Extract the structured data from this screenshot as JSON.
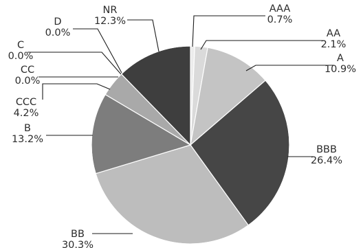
{
  "chart_data": {
    "type": "pie",
    "title": "",
    "start": "12 o'clock",
    "direction": "clockwise",
    "slices": [
      {
        "label": "AAA",
        "value_label": "0.7%",
        "value": 0.7,
        "color": "#ececec"
      },
      {
        "label": "AA",
        "value_label": "2.1%",
        "value": 2.1,
        "color": "#dadada"
      },
      {
        "label": "A",
        "value_label": "10.9%",
        "value": 10.9,
        "color": "#c4c4c4"
      },
      {
        "label": "BBB",
        "value_label": "26.4%",
        "value": 26.4,
        "color": "#464646"
      },
      {
        "label": "BB",
        "value_label": "30.3%",
        "value": 30.3,
        "color": "#bdbdbd"
      },
      {
        "label": "B",
        "value_label": "13.2%",
        "value": 13.2,
        "color": "#7d7d7d"
      },
      {
        "label": "CCC",
        "value_label": "4.2%",
        "value": 4.2,
        "color": "#a9a9a9"
      },
      {
        "label": "CC",
        "value_label": "0.0%",
        "value": 0.0,
        "color": "#9a9a9a"
      },
      {
        "label": "C",
        "value_label": "0.0%",
        "value": 0.0,
        "color": "#8a8a8a"
      },
      {
        "label": "D",
        "value_label": "0.0%",
        "value": 0.0,
        "color": "#6a6a6a"
      },
      {
        "label": "NR",
        "value_label": "12.3%",
        "value": 12.3,
        "color": "#3e3e3e"
      }
    ]
  }
}
